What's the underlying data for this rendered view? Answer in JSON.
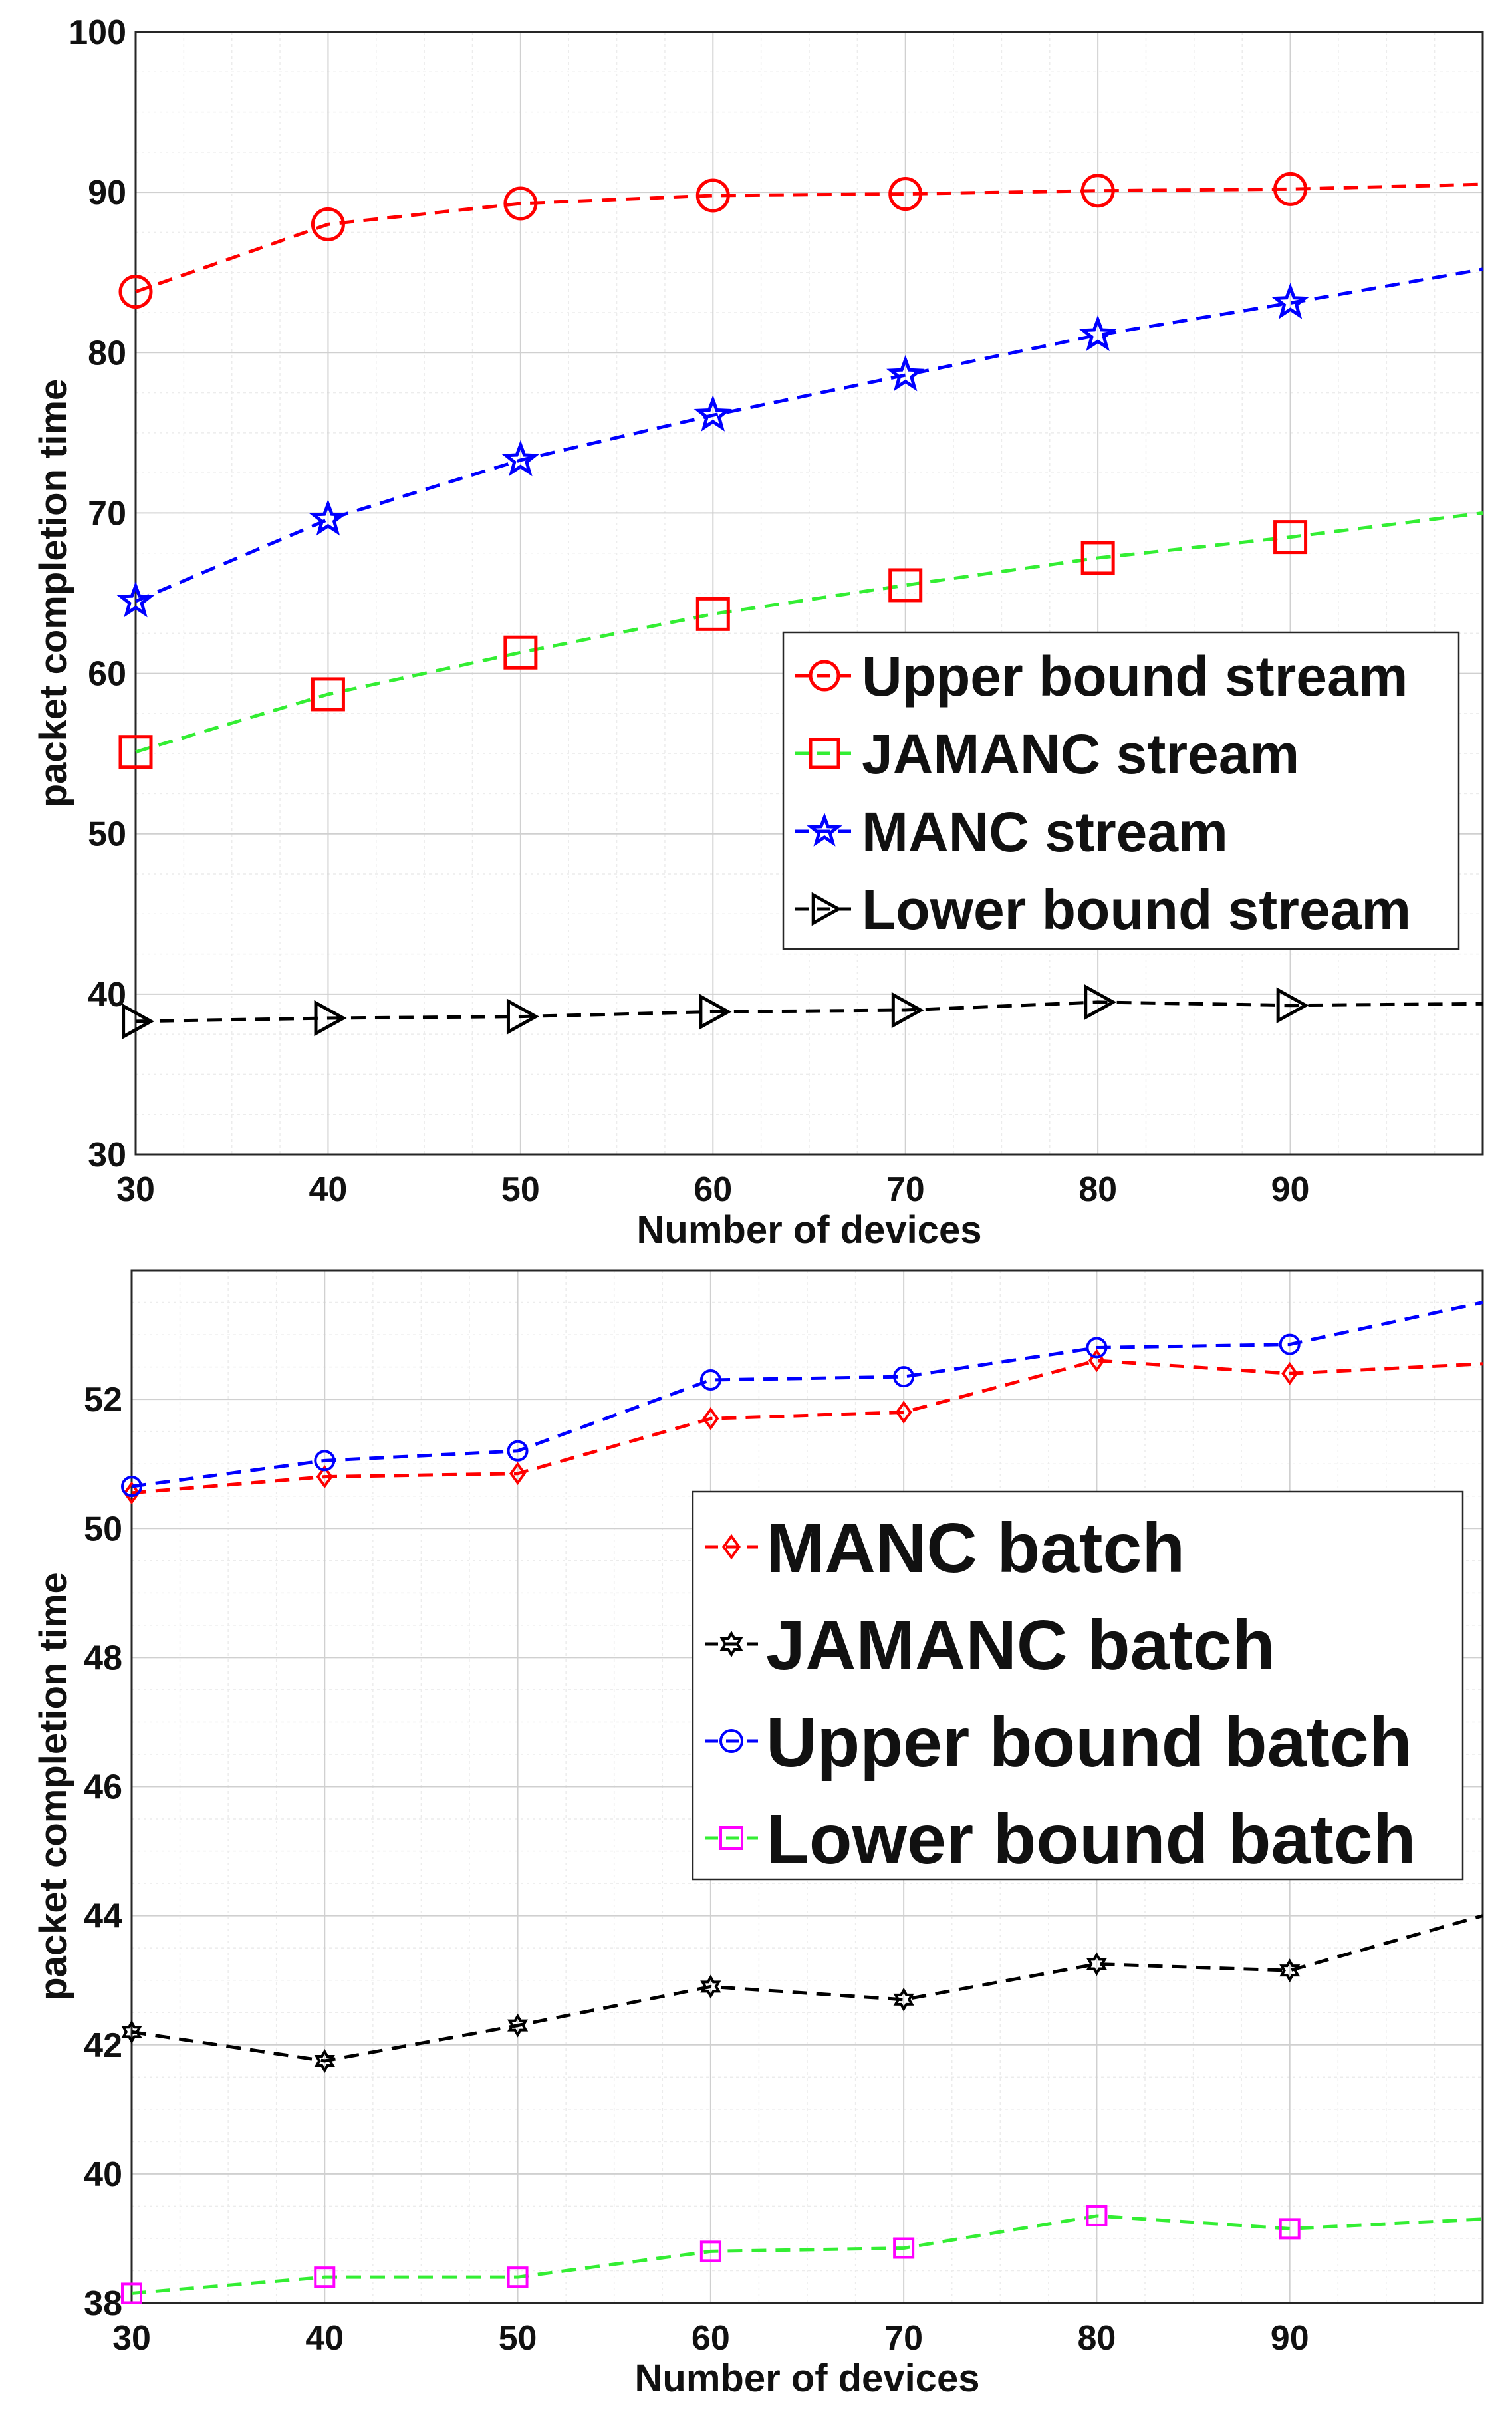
{
  "colors": {
    "red": "#ff0000",
    "blue": "#0000ff",
    "green": "#33ee33",
    "black": "#000000",
    "magenta": "#ff00ff",
    "grid_major": "#d0d0d0",
    "grid_minor": "#ececec",
    "axis": "#262626"
  },
  "chart_data": [
    {
      "type": "line",
      "xlabel": "Number of devices",
      "ylabel": "packet completion time",
      "xlim": [
        30,
        100
      ],
      "ylim": [
        30,
        100
      ],
      "xticks": [
        30,
        40,
        50,
        60,
        70,
        80,
        90
      ],
      "yticks": [
        30,
        40,
        50,
        60,
        70,
        80,
        90,
        100
      ],
      "legend_position": "middle-right",
      "x": [
        30,
        40,
        50,
        60,
        70,
        80,
        90,
        100
      ],
      "series": [
        {
          "name": "Upper bound stream",
          "color": "red",
          "marker": "circle",
          "values": [
            83.8,
            88.0,
            89.3,
            89.8,
            89.9,
            90.1,
            90.2,
            90.5
          ]
        },
        {
          "name": "JAMANC stream",
          "color": "green",
          "marker": "square",
          "marker_color": "red",
          "values": [
            55.1,
            58.7,
            61.3,
            63.7,
            65.5,
            67.2,
            68.5,
            70.0
          ]
        },
        {
          "name": "MANC stream",
          "color": "blue",
          "marker": "star",
          "values": [
            64.5,
            69.6,
            73.3,
            76.1,
            78.6,
            81.1,
            83.1,
            85.2
          ]
        },
        {
          "name": "Lower bound stream",
          "color": "black",
          "marker": "triangle-right",
          "values": [
            38.3,
            38.5,
            38.6,
            38.9,
            39.0,
            39.5,
            39.3,
            39.4
          ]
        }
      ]
    },
    {
      "type": "line",
      "xlabel": "Number of devices",
      "ylabel": "packet completion time",
      "xlim": [
        30,
        100
      ],
      "ylim": [
        38,
        54
      ],
      "xticks": [
        30,
        40,
        50,
        60,
        70,
        80,
        90
      ],
      "yticks": [
        38,
        40,
        42,
        44,
        46,
        48,
        50,
        52
      ],
      "legend_position": "middle-right",
      "x": [
        30,
        40,
        50,
        60,
        70,
        80,
        90,
        100
      ],
      "series": [
        {
          "name": "MANC batch",
          "color": "red",
          "marker": "diamond",
          "values": [
            50.55,
            50.8,
            50.85,
            51.7,
            51.8,
            52.6,
            52.4,
            52.55
          ]
        },
        {
          "name": "JAMANC batch",
          "color": "black",
          "marker": "hexagram",
          "values": [
            42.2,
            41.75,
            42.3,
            42.9,
            42.7,
            43.25,
            43.15,
            44.0
          ]
        },
        {
          "name": "Upper bound batch",
          "color": "blue",
          "marker": "circle",
          "values": [
            50.65,
            51.05,
            51.2,
            52.3,
            52.35,
            52.8,
            52.85,
            53.5
          ]
        },
        {
          "name": "Lower bound batch",
          "color": "green",
          "marker": "square",
          "marker_color": "magenta",
          "values": [
            38.15,
            38.4,
            38.4,
            38.8,
            38.85,
            39.35,
            39.15,
            39.3
          ]
        }
      ]
    }
  ]
}
